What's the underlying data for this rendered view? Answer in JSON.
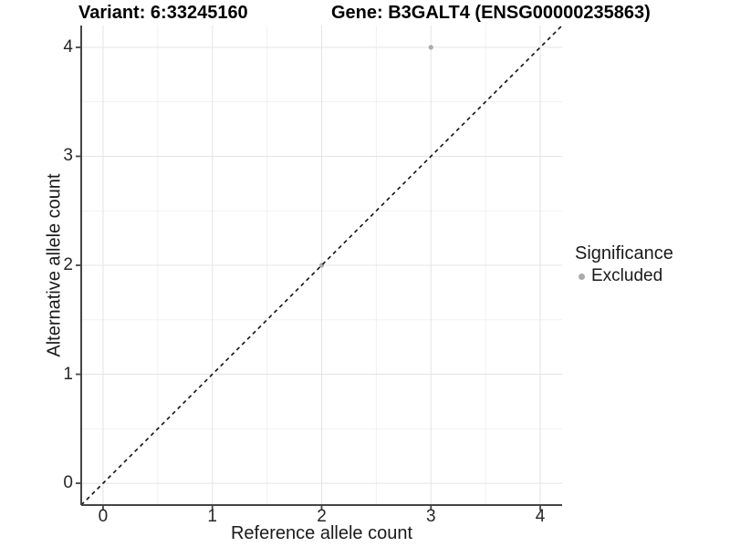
{
  "chart_data": {
    "type": "scatter",
    "titles": {
      "left": "Variant: 6:33245160",
      "right": "Gene: B3GALT4 (ENSG00000235863)"
    },
    "xlabel": "Reference allele count",
    "ylabel": "Alternative allele count",
    "xlim": [
      -0.2,
      4.2
    ],
    "ylim": [
      -0.2,
      4.2
    ],
    "xticks": [
      0,
      1,
      2,
      3,
      4
    ],
    "yticks": [
      0,
      1,
      2,
      3,
      4
    ],
    "minor_xticks": [
      0.5,
      1.5,
      2.5,
      3.5
    ],
    "minor_yticks": [
      0.5,
      1.5,
      2.5,
      3.5
    ],
    "grid": true,
    "points": [
      {
        "x": 2,
        "y": 2,
        "significance": "Excluded"
      },
      {
        "x": 3,
        "y": 4,
        "significance": "Excluded"
      }
    ],
    "identity_line": {
      "style": "dashed",
      "slope": 1,
      "intercept": 0,
      "color": "#111111"
    },
    "legend": {
      "title": "Significance",
      "position": "right",
      "items": [
        {
          "label": "Excluded",
          "color": "#ababab"
        }
      ]
    },
    "colors": {
      "background": "#ffffff",
      "major_grid": "#e4e4e4",
      "minor_grid": "#f1f1f1",
      "axis_line": "#454545",
      "tick_text": "#262626",
      "point_excluded": "#ababab"
    }
  }
}
